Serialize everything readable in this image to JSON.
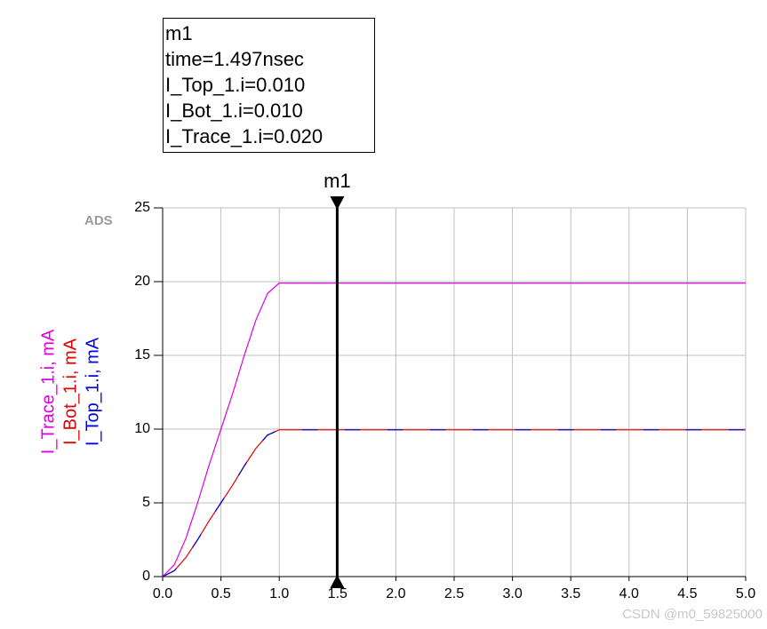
{
  "chart_data": {
    "type": "line",
    "x": [
      0,
      0.1,
      0.2,
      0.3,
      0.4,
      0.5,
      0.6,
      0.7,
      0.8,
      0.9,
      1.0,
      5.0
    ],
    "series": [
      {
        "name": "I_Trace_1.i, mA",
        "color": "#e000e0",
        "dash": false,
        "values": [
          0,
          0.8,
          2.6,
          5.0,
          7.6,
          10.0,
          12.4,
          15.0,
          17.4,
          19.2,
          19.9,
          19.9
        ]
      },
      {
        "name": "I_Bot_1.i, mA",
        "color": "#e00000",
        "dash": false,
        "values": [
          0,
          0.4,
          1.3,
          2.5,
          3.8,
          5.0,
          6.2,
          7.5,
          8.7,
          9.6,
          9.95,
          9.95
        ]
      },
      {
        "name": "I_Top_1.i, mA",
        "color": "#0000e0",
        "dash": true,
        "values": [
          0,
          0.4,
          1.3,
          2.5,
          3.8,
          5.0,
          6.2,
          7.5,
          8.7,
          9.6,
          9.95,
          9.95
        ]
      }
    ],
    "xlim": [
      0,
      5
    ],
    "ylim": [
      0,
      25
    ],
    "xticks": [
      {
        "value": 0,
        "label": "0.0"
      },
      {
        "value": 0.5,
        "label": "0.5"
      },
      {
        "value": 1,
        "label": "1.0"
      },
      {
        "value": 1.5,
        "label": "1.5"
      },
      {
        "value": 2,
        "label": "2.0"
      },
      {
        "value": 2.5,
        "label": "2.5"
      },
      {
        "value": 3,
        "label": "3.0"
      },
      {
        "value": 3.5,
        "label": "3.5"
      },
      {
        "value": 4,
        "label": "4.0"
      },
      {
        "value": 4.5,
        "label": "4.5"
      },
      {
        "value": 5,
        "label": "5.0"
      }
    ],
    "yticks": [
      0,
      5,
      10,
      15,
      20,
      25
    ],
    "grid": true,
    "marker": {
      "name": "m1",
      "x": 1.497,
      "readout": [
        "m1",
        "time=1.497nsec",
        "I_Top_1.i=0.010",
        "I_Bot_1.i=0.010",
        "I_Trace_1.i=0.020"
      ]
    },
    "badge": "ADS",
    "watermark": "CSDN @m0_59825000"
  }
}
